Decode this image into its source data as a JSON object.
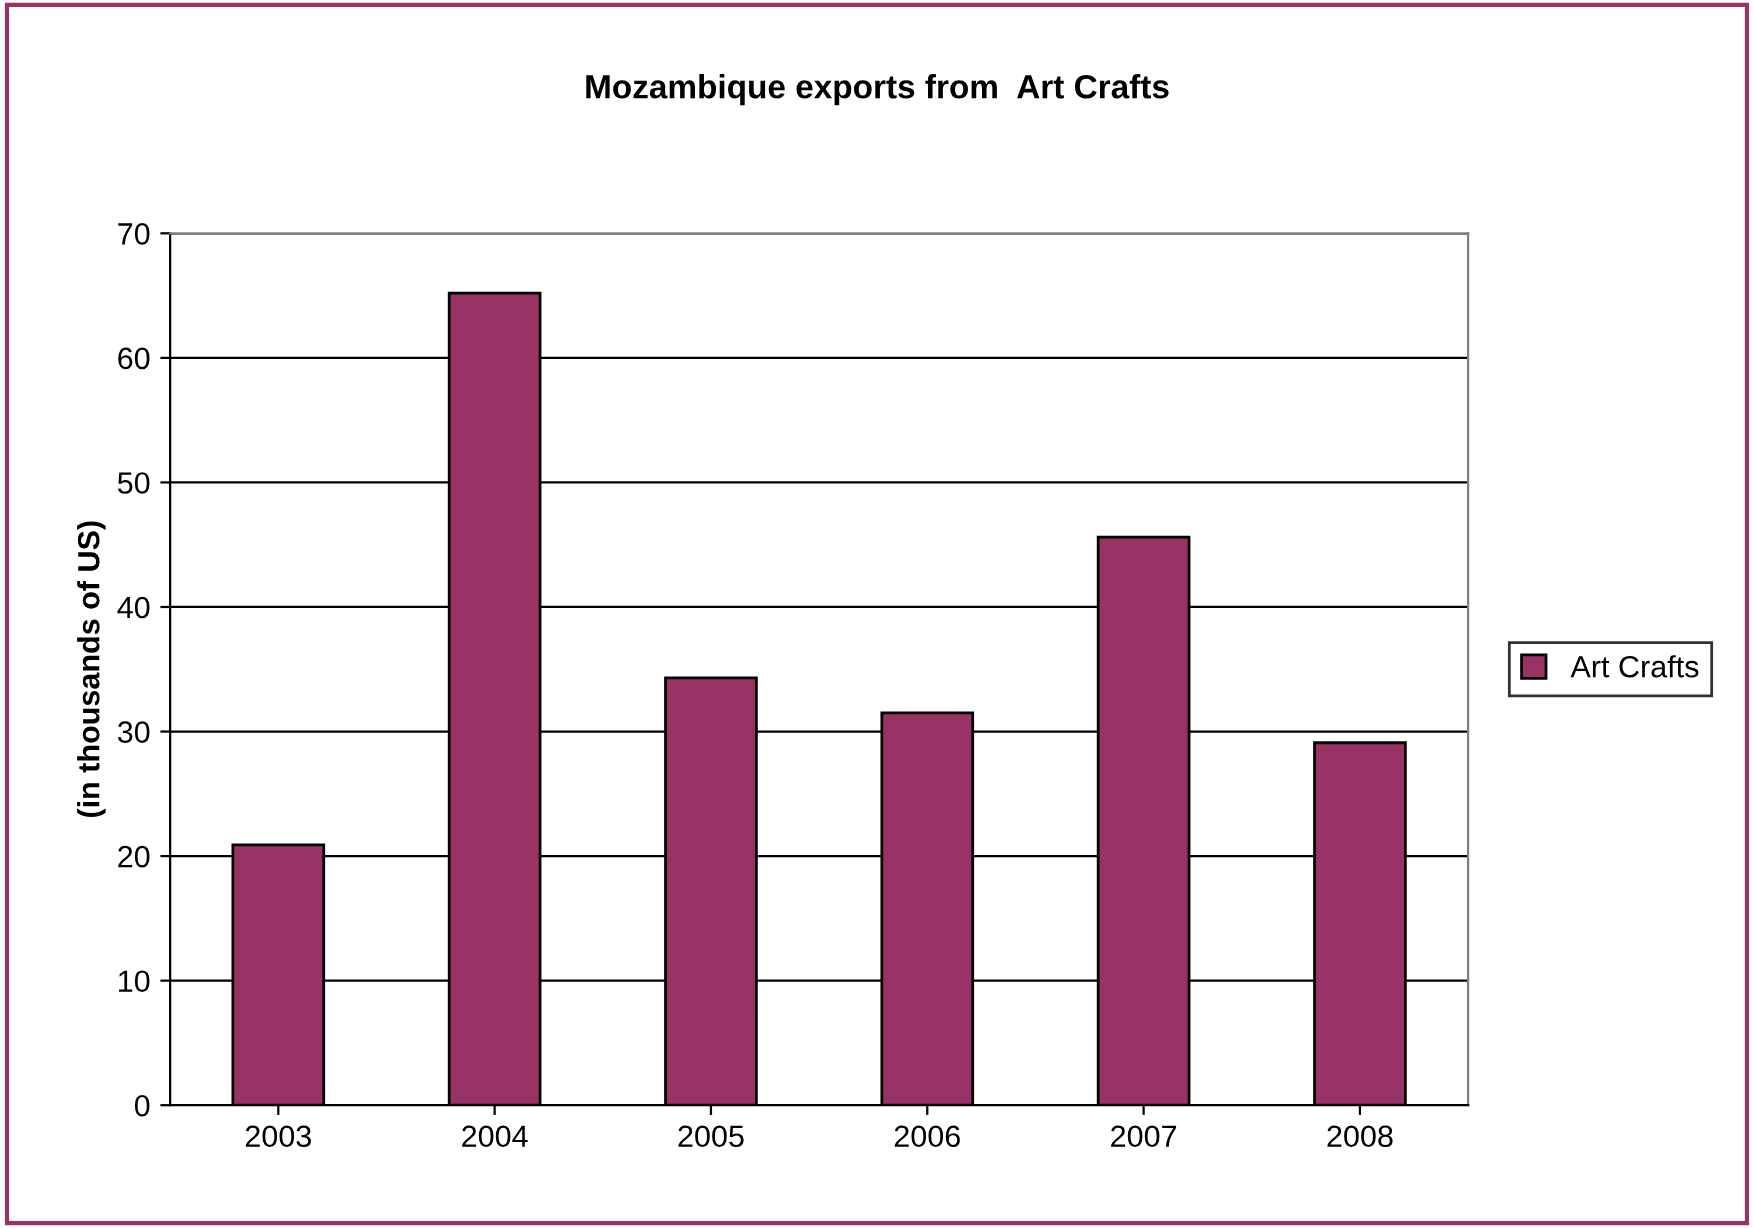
{
  "chart_data": {
    "type": "bar",
    "title": "Mozambique exports from  Art Crafts",
    "ylabel": "(in thousands of US)",
    "categories": [
      "2003",
      "2004",
      "2005",
      "2006",
      "2007",
      "2008"
    ],
    "series": [
      {
        "name": "Art Crafts",
        "color": "#993366",
        "values": [
          20.9,
          65.2,
          34.3,
          31.5,
          45.6,
          29.1
        ]
      }
    ],
    "ylim": [
      0,
      70
    ],
    "yticks": [
      0,
      10,
      20,
      30,
      40,
      50,
      60,
      70
    ],
    "grid": "y",
    "legend": "right"
  }
}
